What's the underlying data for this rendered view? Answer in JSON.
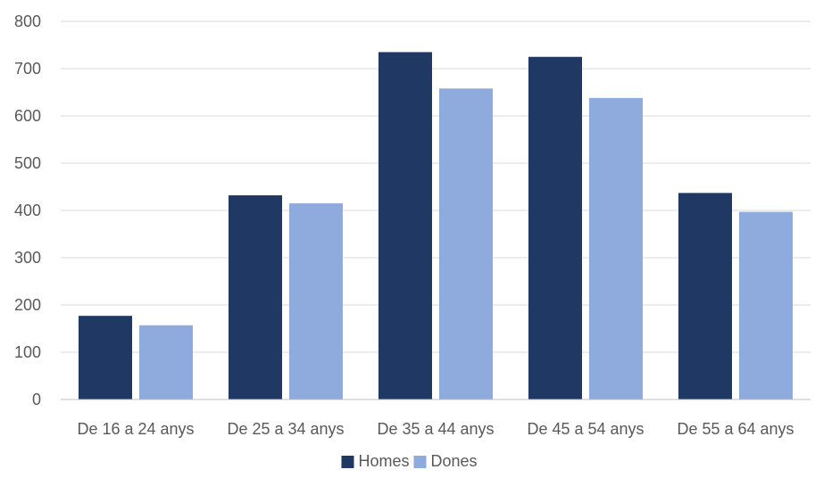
{
  "chart_data": {
    "type": "bar",
    "title": "",
    "xlabel": "",
    "ylabel": "",
    "categories": [
      "De 16 a 24 anys",
      "De 25 a 34 anys",
      "De 35 a 44 anys",
      "De 45 a 54 anys",
      "De 55 a 64 anys"
    ],
    "series": [
      {
        "name": "Homes",
        "color": "#203864",
        "values": [
          177,
          432,
          735,
          725,
          437
        ]
      },
      {
        "name": "Dones",
        "color": "#8faadc",
        "values": [
          157,
          415,
          658,
          638,
          397
        ]
      }
    ],
    "ylim": [
      0,
      800
    ],
    "yticks": [
      0,
      100,
      200,
      300,
      400,
      500,
      600,
      700,
      800
    ],
    "grid": true,
    "legend_position": "bottom"
  }
}
